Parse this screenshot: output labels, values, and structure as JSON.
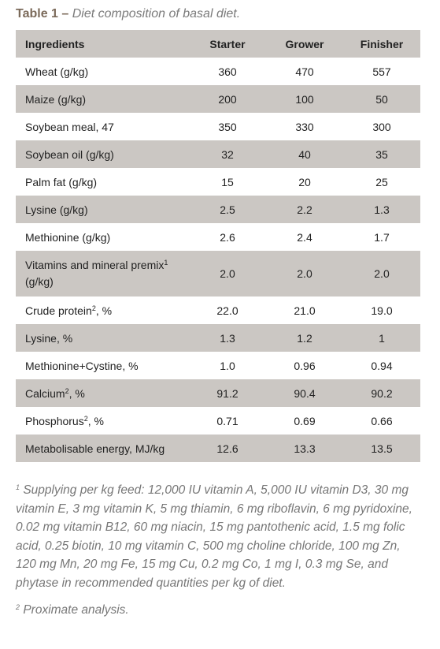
{
  "header": {
    "label": "Table 1 –",
    "title": "Diet composition of basal diet."
  },
  "table": {
    "columns": [
      "Ingredients",
      "Starter",
      "Grower",
      "Finisher"
    ],
    "rows": [
      [
        "Wheat (g/kg)",
        "360",
        "470",
        "557"
      ],
      [
        "Maize (g/kg)",
        "200",
        "100",
        "50"
      ],
      [
        "Soybean meal, 47",
        "350",
        "330",
        "300"
      ],
      [
        "Soybean oil (g/kg)",
        "32",
        "40",
        "35"
      ],
      [
        "Palm fat (g/kg)",
        "15",
        "20",
        "25"
      ],
      [
        "Lysine (g/kg)",
        "2.5",
        "2.2",
        "1.3"
      ],
      [
        "Methionine (g/kg)",
        "2.6",
        "2.4",
        "1.7"
      ],
      [
        {
          "text": "Vitamins and mineral premix",
          "sup": "1",
          "after": " (g/kg)"
        },
        "2.0",
        "2.0",
        "2.0"
      ],
      [
        {
          "text": "Crude protein",
          "sup": "2",
          "after": ", %"
        },
        "22.0",
        "21.0",
        "19.0"
      ],
      [
        "Lysine, %",
        "1.3",
        "1.2",
        "1"
      ],
      [
        "Methionine+Cystine, %",
        "1.0",
        "0.96",
        "0.94"
      ],
      [
        {
          "text": "Calcium",
          "sup": "2",
          "after": ", %"
        },
        "91.2",
        "90.4",
        "90.2"
      ],
      [
        {
          "text": "Phosphorus",
          "sup": "2",
          "after": ", %"
        },
        "0.71",
        "0.69",
        "0.66"
      ],
      [
        "Metabolisable energy, MJ/kg",
        "12.6",
        "13.3",
        "13.5"
      ]
    ]
  },
  "footnotes": [
    {
      "mark": "1",
      "text": "Supplying per kg feed: 12,000 IU vitamin A, 5,000 IU vitamin D3, 30 mg vitamin E, 3 mg vitamin K, 5 mg thiamin, 6 mg riboflavin, 6 mg pyridoxine, 0.02 mg vitamin B12, 60 mg niacin, 15 mg pantothenic acid, 1.5 mg folic acid, 0.25 biotin, 10 mg vitamin C, 500 mg choline chloride, 100 mg Zn, 120 mg Mn, 20 mg Fe, 15 mg Cu, 0.2 mg Co, 1 mg I, 0.3 mg Se, and phytase in recommended quantities per kg of diet."
    },
    {
      "mark": "2",
      "text": "Proximate analysis."
    }
  ]
}
